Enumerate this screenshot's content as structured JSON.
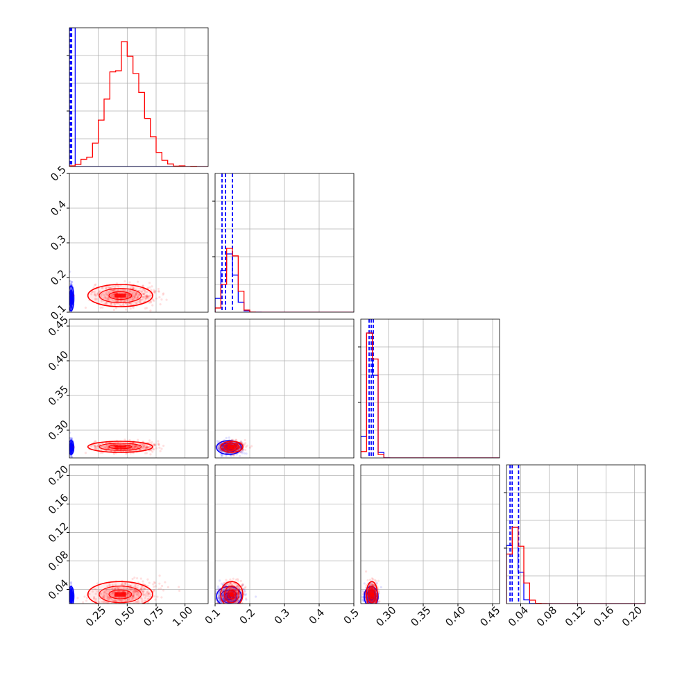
{
  "colors": {
    "blue": "#0000ff",
    "red": "#ff0000",
    "grid": "#b0b0b0",
    "frame": "#000000"
  },
  "chart_data": {
    "type": "corner",
    "title": "",
    "parameters": [
      {
        "range": [
          0.0,
          1.2
        ],
        "ticks": [
          "0.25",
          "0.50",
          "0.75",
          "1.00"
        ],
        "tick_values": [
          0.25,
          0.5,
          0.75,
          1.0
        ]
      },
      {
        "range": [
          0.1,
          0.5
        ],
        "ticks": [
          "0.1",
          "0.2",
          "0.3",
          "0.4",
          "0.5"
        ],
        "tick_values": [
          0.1,
          0.2,
          0.3,
          0.4,
          0.5
        ]
      },
      {
        "range": [
          0.26,
          0.46
        ],
        "ticks": [
          "0.30",
          "0.35",
          "0.40",
          "0.45"
        ],
        "tick_values": [
          0.3,
          0.35,
          0.4,
          0.45
        ]
      },
      {
        "range": [
          0.02,
          0.215
        ],
        "ticks": [
          "0.04",
          "0.08",
          "0.12",
          "0.16",
          "0.20"
        ],
        "tick_values": [
          0.04,
          0.08,
          0.12,
          0.16,
          0.2
        ]
      }
    ],
    "grid": true,
    "legend": "none",
    "series": [
      {
        "color": "blue",
        "means": [
          0.015,
          0.14,
          0.275,
          0.03
        ],
        "sds": [
          0.006,
          0.018,
          0.005,
          0.007
        ],
        "quantiles": [
          [
            0.009,
            0.011,
            0.013,
            0.015,
            0.017,
            0.019
          ],
          [
            0.12,
            0.13,
            0.15
          ],
          [
            0.272,
            0.275,
            0.278
          ],
          [
            0.025,
            0.028,
            0.037
          ]
        ],
        "hist_peaks": [
          1.0,
          0.42,
          0.9,
          0.55
        ],
        "correlations": [
          [
            0,
            1,
            0.0
          ],
          [
            0,
            2,
            0.0
          ],
          [
            0,
            3,
            0.0
          ],
          [
            1,
            2,
            0.0
          ],
          [
            1,
            3,
            0.0
          ],
          [
            2,
            3,
            0.0
          ]
        ]
      },
      {
        "color": "red",
        "means": [
          0.44,
          0.148,
          0.276,
          0.033
        ],
        "sds": [
          0.14,
          0.016,
          0.004,
          0.009
        ],
        "quantiles": [
          [],
          [],
          [],
          []
        ],
        "hist_peaks": [
          0.9,
          0.46,
          0.9,
          0.55
        ],
        "correlations": [
          [
            0,
            1,
            0.0
          ],
          [
            0,
            2,
            0.0
          ],
          [
            0,
            3,
            0.25
          ],
          [
            1,
            2,
            0.0
          ],
          [
            1,
            3,
            0.1
          ],
          [
            2,
            3,
            0.0
          ]
        ]
      }
    ]
  }
}
